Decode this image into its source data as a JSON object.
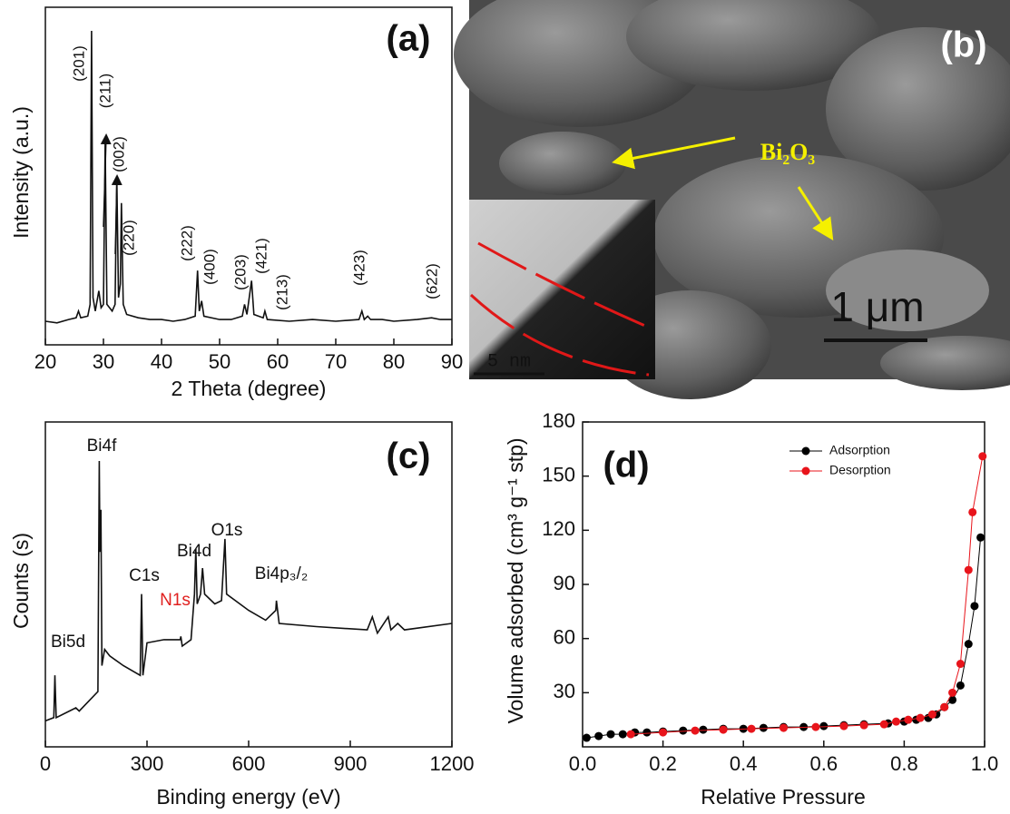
{
  "chart_data": [
    {
      "type": "line",
      "panel_label": "(a)",
      "x_label": "2 Theta (degree)",
      "y_label": "Intensity (a.u.)",
      "color": "#111111",
      "xlim": [
        20,
        90
      ],
      "xticks": [
        20,
        30,
        40,
        50,
        60,
        70,
        80,
        90
      ],
      "ylim": [
        0,
        100
      ],
      "x": [
        20,
        22,
        24,
        25.3,
        25.7,
        26.1,
        27.3,
        27.7,
        27.95,
        28.2,
        28.6,
        29.2,
        29.6,
        30.0,
        30.3,
        30.6,
        31.5,
        32.0,
        32.3,
        32.6,
        32.9,
        33.1,
        33.4,
        34,
        36,
        38,
        40,
        42,
        44,
        45.8,
        46.2,
        46.5,
        46.9,
        47.3,
        50,
        52,
        53.9,
        54.3,
        54.7,
        55.5,
        55.9,
        57.5,
        57.8,
        58.2,
        62,
        66,
        70,
        74,
        74.5,
        74.9,
        75.5,
        76,
        78,
        80,
        84,
        86.5,
        88,
        90
      ],
      "values": [
        7,
        6.5,
        7.5,
        8,
        10,
        8,
        8.5,
        12,
        93,
        14,
        10,
        16,
        11,
        12,
        60,
        12,
        10,
        12,
        50,
        14,
        18,
        42,
        12,
        9,
        8,
        7.5,
        7.5,
        7,
        7.5,
        8.5,
        22,
        10,
        13,
        8.5,
        7.5,
        7.5,
        8.5,
        12,
        9,
        19,
        9,
        8,
        10,
        7.5,
        7,
        7.5,
        7,
        7.5,
        10,
        7.5,
        8.5,
        7.5,
        7.5,
        7,
        7.5,
        8,
        7.5,
        7.5
      ],
      "peak_labels": [
        "(201)",
        "(211)",
        "(002)",
        "(220)",
        "(222)",
        "(400)",
        "(203)",
        "(421)",
        "(213)",
        "(423)",
        "(622)"
      ]
    },
    {
      "type": "image",
      "panel_label": "(b)",
      "annotation": "Bi₂O₃",
      "scale_bar": "1 μm",
      "inset_scale_bar": "5 nm"
    },
    {
      "type": "line",
      "panel_label": "(c)",
      "x_label": "Binding energy (eV)",
      "y_label": "Counts (s)",
      "color": "#111111",
      "xlim": [
        0,
        1200
      ],
      "xticks": [
        0,
        300,
        600,
        900,
        1200
      ],
      "ylim": [
        0,
        100
      ],
      "x": [
        0,
        25,
        28,
        32,
        90,
        100,
        155,
        159,
        161,
        164,
        167,
        175,
        190,
        230,
        280,
        284,
        288,
        300,
        350,
        398,
        400,
        404,
        430,
        440,
        444,
        448,
        458,
        464,
        470,
        500,
        520,
        530,
        535,
        600,
        650,
        680,
        682,
        690,
        800,
        950,
        965,
        980,
        1012,
        1020,
        1040,
        1060,
        1200
      ],
      "values": [
        8,
        9,
        22,
        9,
        12,
        11,
        17,
        88,
        60,
        73,
        25,
        30,
        28,
        25,
        22,
        47,
        22,
        32,
        33,
        33,
        34,
        31,
        33,
        47,
        61,
        44,
        47,
        55,
        47,
        44,
        45,
        64,
        47,
        42,
        39,
        42,
        45,
        38,
        37,
        36,
        40,
        35,
        40,
        36,
        38,
        36,
        38
      ],
      "peak_labels": [
        {
          "text": "Bi5d"
        },
        {
          "text": "Bi4f"
        },
        {
          "text": "C1s"
        },
        {
          "text": "N1s",
          "color": "#e0201f"
        },
        {
          "text": "Bi4d"
        },
        {
          "text": "O1s"
        },
        {
          "text": "Bi4p₃/₂"
        }
      ]
    },
    {
      "type": "scatter",
      "panel_label": "(d)",
      "x_label": "Relative Pressure",
      "y_label": "Volume adsorbed (cm³ g⁻¹ stp)",
      "legend": "top-right",
      "xlim": [
        0,
        1
      ],
      "xticks": [
        {
          "value": 0,
          "label": "0.0"
        },
        {
          "value": 0.2,
          "label": "0.2"
        },
        {
          "value": 0.4,
          "label": "0.4"
        },
        {
          "value": 0.6,
          "label": "0.6"
        },
        {
          "value": 0.8,
          "label": "0.8"
        },
        {
          "value": 1,
          "label": "1.0"
        }
      ],
      "ylim": [
        0,
        180
      ],
      "yticks": [
        30,
        60,
        90,
        120,
        150,
        180
      ],
      "series": [
        {
          "name": "Adsorption",
          "color": "#000000",
          "x": [
            0.01,
            0.04,
            0.07,
            0.1,
            0.13,
            0.16,
            0.2,
            0.25,
            0.3,
            0.35,
            0.4,
            0.45,
            0.5,
            0.55,
            0.6,
            0.65,
            0.7,
            0.76,
            0.8,
            0.83,
            0.86,
            0.88,
            0.9,
            0.92,
            0.94,
            0.96,
            0.975,
            0.99
          ],
          "values": [
            5,
            6,
            7,
            7,
            8,
            8,
            8.5,
            9,
            9.5,
            10,
            10,
            10.5,
            11,
            11,
            11.5,
            12,
            12.5,
            13,
            14,
            15,
            16,
            18,
            22,
            26,
            34,
            57,
            78,
            116
          ]
        },
        {
          "name": "Desorption",
          "color": "#e8141b",
          "x": [
            0.12,
            0.2,
            0.28,
            0.35,
            0.42,
            0.5,
            0.58,
            0.65,
            0.7,
            0.75,
            0.78,
            0.81,
            0.84,
            0.87,
            0.9,
            0.92,
            0.94,
            0.96,
            0.97,
            0.995
          ],
          "values": [
            7,
            8,
            9,
            9.5,
            10,
            10.5,
            11,
            11.5,
            12,
            12.5,
            14,
            15,
            16,
            18,
            22,
            30,
            46,
            98,
            130,
            161
          ]
        }
      ]
    }
  ]
}
